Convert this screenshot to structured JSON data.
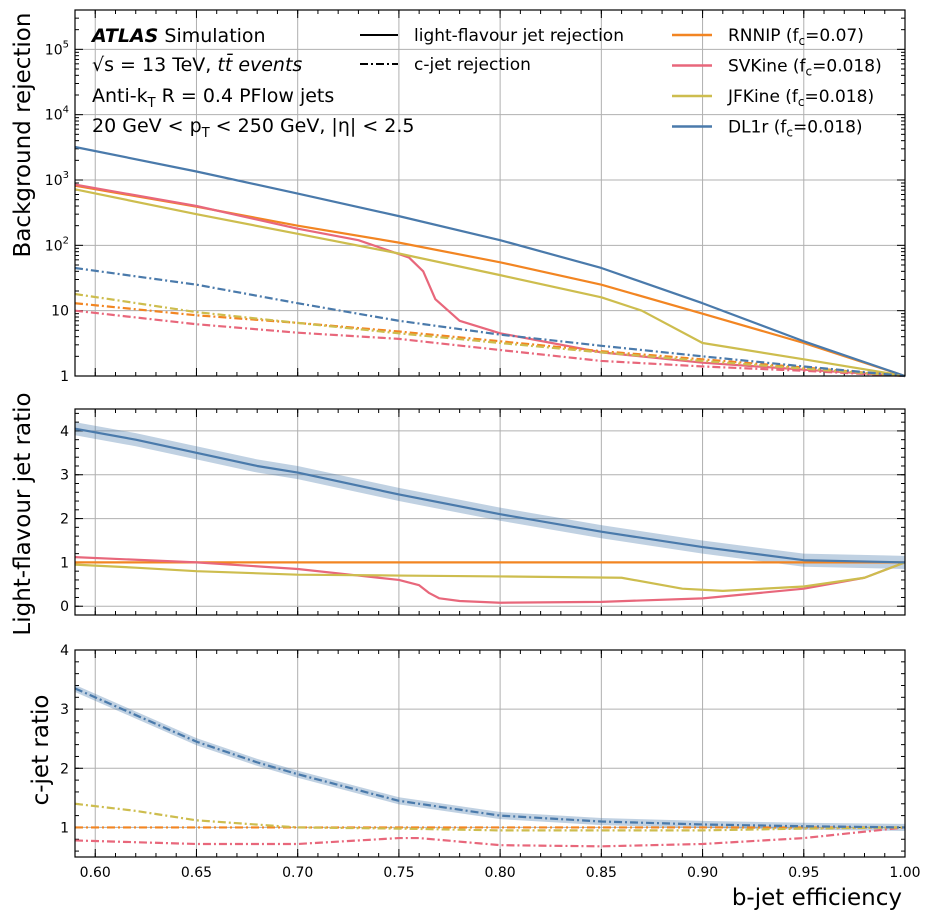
{
  "figure": {
    "experiment_bold": "ATLAS",
    "experiment_rest": " Simulation",
    "energy_eq": "√s = 13 TeV, ",
    "energy_events": "tt̄ events",
    "jets_line_a": "Anti-k",
    "jets_line_sub": "T",
    "jets_line_b": " R = 0.4 PFlow jets",
    "cuts_line_a": "20 GeV < p",
    "cuts_line_sub": "T",
    "cuts_line_b": " < 250 GeV, |η| < 2.5",
    "style_legend": [
      {
        "label": "light-flavour jet rejection",
        "style": "solid"
      },
      {
        "label": "c-jet rejection",
        "style": "dashdot"
      }
    ],
    "xlabel": "b-jet efficiency"
  },
  "colors": {
    "RNNIP": "#f28522",
    "SVKine": "#e8677b",
    "JFKine": "#cdbd4e",
    "DL1r": "#4a7aab",
    "grid": "#b0b0b0"
  },
  "chart_data": [
    {
      "type": "line",
      "panel": "top",
      "ylabel": "Background rejection",
      "yscale": "log",
      "xlim": [
        0.59,
        1.0
      ],
      "ylim": [
        1,
        400000
      ],
      "xticks": [
        "0.60",
        "0.65",
        "0.70",
        "0.75",
        "0.80",
        "0.85",
        "0.90",
        "0.95",
        "1.00"
      ],
      "yticks": [
        "1",
        "10",
        "100",
        "1000",
        "10000",
        "100000"
      ],
      "grid": true,
      "legend_position": "top-right",
      "series": [
        {
          "name": "RNNIP (fc=0.07)",
          "key": "RNNIP",
          "style": "solid",
          "x": [
            0.59,
            0.65,
            0.7,
            0.75,
            0.8,
            0.85,
            0.9,
            0.95,
            1.0
          ],
          "y": [
            820,
            390,
            200,
            110,
            55,
            25,
            9,
            3.2,
            1
          ]
        },
        {
          "name": "SVKine (fc=0.018)",
          "key": "SVKine",
          "style": "solid",
          "x": [
            0.59,
            0.65,
            0.7,
            0.73,
            0.755,
            0.762,
            0.768,
            0.78,
            0.8,
            0.85,
            0.9,
            0.95,
            1.0
          ],
          "y": [
            850,
            400,
            180,
            120,
            65,
            40,
            15,
            7,
            4.5,
            2.3,
            1.6,
            1.25,
            1
          ]
        },
        {
          "name": "JFKine (fc=0.018)",
          "key": "JFKine",
          "style": "solid",
          "x": [
            0.59,
            0.65,
            0.7,
            0.75,
            0.8,
            0.85,
            0.87,
            0.9,
            0.95,
            1.0
          ],
          "y": [
            720,
            300,
            150,
            75,
            35,
            16,
            10,
            3.2,
            1.8,
            1
          ]
        },
        {
          "name": "DL1r (fc=0.018)",
          "key": "DL1r",
          "style": "solid",
          "x": [
            0.59,
            0.65,
            0.7,
            0.75,
            0.8,
            0.85,
            0.9,
            0.95,
            1.0
          ],
          "y": [
            3200,
            1350,
            620,
            280,
            120,
            45,
            13,
            3.4,
            1
          ]
        },
        {
          "name": "RNNIP c-jet",
          "key": "RNNIP",
          "style": "dashdot",
          "x": [
            0.59,
            0.65,
            0.7,
            0.75,
            0.8,
            0.85,
            0.9,
            0.95,
            1.0
          ],
          "y": [
            13,
            8.5,
            6.5,
            4.8,
            3.4,
            2.4,
            1.8,
            1.35,
            1
          ]
        },
        {
          "name": "SVKine c-jet",
          "key": "SVKine",
          "style": "dashdot",
          "x": [
            0.59,
            0.65,
            0.7,
            0.75,
            0.8,
            0.85,
            0.9,
            0.95,
            1.0
          ],
          "y": [
            10,
            6.2,
            4.6,
            3.7,
            2.5,
            1.7,
            1.4,
            1.2,
            1
          ]
        },
        {
          "name": "JFKine c-jet",
          "key": "JFKine",
          "style": "dashdot",
          "x": [
            0.59,
            0.65,
            0.7,
            0.75,
            0.8,
            0.85,
            0.9,
            0.95,
            1.0
          ],
          "y": [
            18,
            9.5,
            6.5,
            4.5,
            3.2,
            2.3,
            1.7,
            1.3,
            1
          ]
        },
        {
          "name": "DL1r c-jet",
          "key": "DL1r",
          "style": "dashdot",
          "x": [
            0.59,
            0.65,
            0.7,
            0.75,
            0.8,
            0.85,
            0.9,
            0.95,
            1.0
          ],
          "y": [
            45,
            25,
            13,
            7,
            4.3,
            2.9,
            2.0,
            1.4,
            1
          ]
        }
      ],
      "legend": [
        {
          "label": "RNNIP (f",
          "sub": "c",
          "tail": "=0.07)",
          "key": "RNNIP"
        },
        {
          "label": "SVKine (f",
          "sub": "c",
          "tail": "=0.018)",
          "key": "SVKine"
        },
        {
          "label": "JFKine (f",
          "sub": "c",
          "tail": "=0.018)",
          "key": "JFKine"
        },
        {
          "label": "DL1r (f",
          "sub": "c",
          "tail": "=0.018)",
          "key": "DL1r"
        }
      ]
    },
    {
      "type": "line",
      "panel": "middle",
      "ylabel": "Light-flavour jet ratio",
      "xlim": [
        0.59,
        1.0
      ],
      "ylim": [
        -0.2,
        4.5
      ],
      "yticks": [
        "0",
        "1",
        "2",
        "3",
        "4"
      ],
      "grid": true,
      "series": [
        {
          "key": "RNNIP",
          "style": "solid",
          "x": [
            0.59,
            1.0
          ],
          "y": [
            1,
            1
          ]
        },
        {
          "key": "SVKine",
          "style": "solid",
          "x": [
            0.59,
            0.65,
            0.7,
            0.73,
            0.75,
            0.76,
            0.765,
            0.77,
            0.78,
            0.8,
            0.85,
            0.9,
            0.95,
            0.98,
            1.0
          ],
          "y": [
            1.12,
            1.0,
            0.85,
            0.7,
            0.6,
            0.48,
            0.3,
            0.18,
            0.12,
            0.08,
            0.1,
            0.18,
            0.4,
            0.65,
            1.0
          ]
        },
        {
          "key": "JFKine",
          "style": "solid",
          "x": [
            0.59,
            0.62,
            0.65,
            0.7,
            0.75,
            0.8,
            0.86,
            0.89,
            0.91,
            0.95,
            0.98,
            1.0
          ],
          "y": [
            0.95,
            0.88,
            0.8,
            0.72,
            0.7,
            0.68,
            0.65,
            0.4,
            0.35,
            0.45,
            0.65,
            1.0
          ]
        },
        {
          "key": "DL1r",
          "style": "solid",
          "x": [
            0.59,
            0.62,
            0.65,
            0.68,
            0.7,
            0.75,
            0.8,
            0.85,
            0.9,
            0.95,
            1.0
          ],
          "y": [
            4.05,
            3.8,
            3.5,
            3.2,
            3.05,
            2.55,
            2.1,
            1.7,
            1.35,
            1.05,
            1.0
          ],
          "band": 0.15
        }
      ]
    },
    {
      "type": "line",
      "panel": "bottom",
      "ylabel": "c-jet ratio",
      "xlim": [
        0.59,
        1.0
      ],
      "ylim": [
        0.5,
        4.0
      ],
      "yticks": [
        "1",
        "2",
        "3",
        "4"
      ],
      "grid": true,
      "series": [
        {
          "key": "RNNIP",
          "style": "dashdot",
          "x": [
            0.59,
            1.0
          ],
          "y": [
            1,
            1
          ]
        },
        {
          "key": "SVKine",
          "style": "dashdot",
          "x": [
            0.59,
            0.65,
            0.7,
            0.75,
            0.76,
            0.8,
            0.85,
            0.9,
            0.95,
            1.0
          ],
          "y": [
            0.78,
            0.72,
            0.72,
            0.82,
            0.82,
            0.7,
            0.68,
            0.72,
            0.82,
            1.0
          ]
        },
        {
          "key": "JFKine",
          "style": "dashdot",
          "x": [
            0.59,
            0.62,
            0.65,
            0.7,
            0.75,
            0.8,
            0.85,
            0.9,
            0.95,
            1.0
          ],
          "y": [
            1.4,
            1.28,
            1.12,
            1.0,
            0.98,
            0.95,
            0.95,
            0.95,
            0.98,
            1.0
          ]
        },
        {
          "key": "DL1r",
          "style": "dashdot",
          "x": [
            0.59,
            0.62,
            0.65,
            0.68,
            0.7,
            0.75,
            0.8,
            0.85,
            0.9,
            0.95,
            1.0
          ],
          "y": [
            3.35,
            2.9,
            2.45,
            2.1,
            1.9,
            1.45,
            1.2,
            1.1,
            1.05,
            1.02,
            1.0
          ],
          "band": 0.06
        }
      ]
    }
  ]
}
